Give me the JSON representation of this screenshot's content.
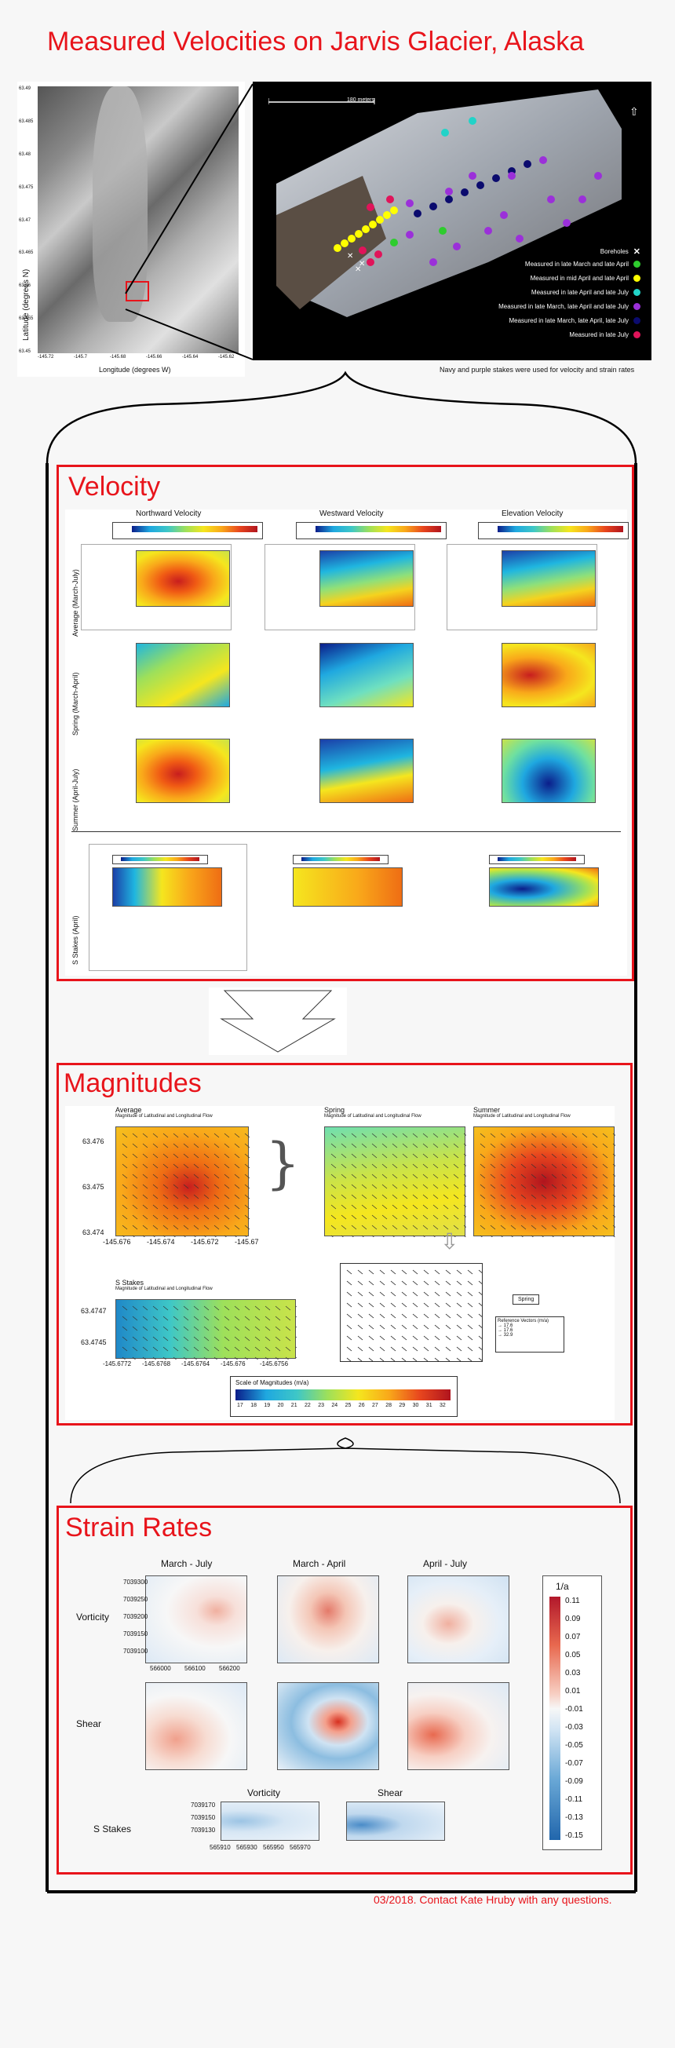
{
  "title": "Measured Velocities on Jarvis Glacier, Alaska",
  "overview": {
    "ylabel": "Latitude (degrees N)",
    "xlabel": "Longitude (degrees W)",
    "yticks": [
      "63.49",
      "63.485",
      "63.48",
      "63.475",
      "63.47",
      "63.465",
      "63.46",
      "63.455",
      "63.45"
    ],
    "xticks": [
      "-145.72",
      "-145.7",
      "-145.68",
      "-145.66",
      "-145.64",
      "-145.62"
    ],
    "scale_label": "180 meters",
    "legend": [
      {
        "label": "Boreholes",
        "color": "#ffffff",
        "symbol": "x"
      },
      {
        "label": "Measured in late March and late April",
        "color": "#2ecc2e"
      },
      {
        "label": "Measured in mid April and late April",
        "color": "#ffff00"
      },
      {
        "label": "Measured in late April and late July",
        "color": "#22d3c8"
      },
      {
        "label": "Measured in late March, late April and late July",
        "color": "#9b30d9"
      },
      {
        "label": "Measured in late March, late April, late July",
        "color": "#0b0b6e"
      },
      {
        "label": "Measured in late July",
        "color": "#e0145a"
      }
    ],
    "caption": "Navy and purple stakes were used for velocity and strain rates"
  },
  "velocity": {
    "heading": "Velocity",
    "columns": [
      "Northward Velocity",
      "Westward Velocity",
      "Elevation Velocity"
    ],
    "rows": [
      "Average (March-July)",
      "Spring (March-April)",
      "Summer (April-July)"
    ],
    "s_stakes_label": "S Stakes (April)"
  },
  "magnitudes": {
    "heading": "Magnitudes",
    "panels": [
      {
        "title": "Average",
        "subtitle": "Magnitude of Latitudinal and Longitudinal Flow"
      },
      {
        "title": "Spring",
        "subtitle": "Magnitude of Latitudinal and Longitudinal Flow"
      },
      {
        "title": "Summer",
        "subtitle": "Magnitude of Latitudinal and Longitudinal Flow"
      },
      {
        "title": "S Stakes",
        "subtitle": "Magnitude of Latitudinal and Longitudinal Flow"
      }
    ],
    "avg_yticks": [
      "63.476",
      "63.475",
      "63.474"
    ],
    "avg_xticks": [
      "-145.676",
      "-145.674",
      "-145.672",
      "-145.67"
    ],
    "s_yticks": [
      "63.4747",
      "63.4745"
    ],
    "s_xticks": [
      "-145.6772",
      "-145.6768",
      "-145.6764",
      "-145.676",
      "-145.6756"
    ],
    "spring_box": "Spring",
    "ref_title": "Reference Vectors (m/a)",
    "ref_values": [
      "17.6",
      "17.6",
      "32.9"
    ],
    "scale_title": "Scale of Magnitudes (m/a)",
    "scale_ticks": [
      "17",
      "18",
      "19",
      "20",
      "21",
      "22",
      "23",
      "24",
      "25",
      "26",
      "27",
      "28",
      "29",
      "30",
      "31",
      "32"
    ]
  },
  "strain": {
    "heading": "Strain Rates",
    "columns": [
      "March - July",
      "March - April",
      "April - July"
    ],
    "rows": [
      "Vorticity",
      "Shear"
    ],
    "yticks": [
      "7039300",
      "7039250",
      "7039200",
      "7039150",
      "7039100"
    ],
    "xticks": [
      "566000",
      "566100",
      "566200"
    ],
    "s_label": "S Stakes",
    "s_columns": [
      "Vorticity",
      "Shear"
    ],
    "s_yticks": [
      "7039170",
      "7039150",
      "7039130"
    ],
    "s_xticks": [
      "565910",
      "565930",
      "565950",
      "565970"
    ],
    "colorbar_title": "1/a",
    "colorbar_ticks": [
      "0.11",
      "0.09",
      "0.07",
      "0.05",
      "0.03",
      "0.01",
      "-0.01",
      "-0.03",
      "-0.05",
      "-0.07",
      "-0.09",
      "-0.11",
      "-0.13",
      "-0.15"
    ]
  },
  "footer": "03/2018. Contact Kate Hruby with any questions."
}
